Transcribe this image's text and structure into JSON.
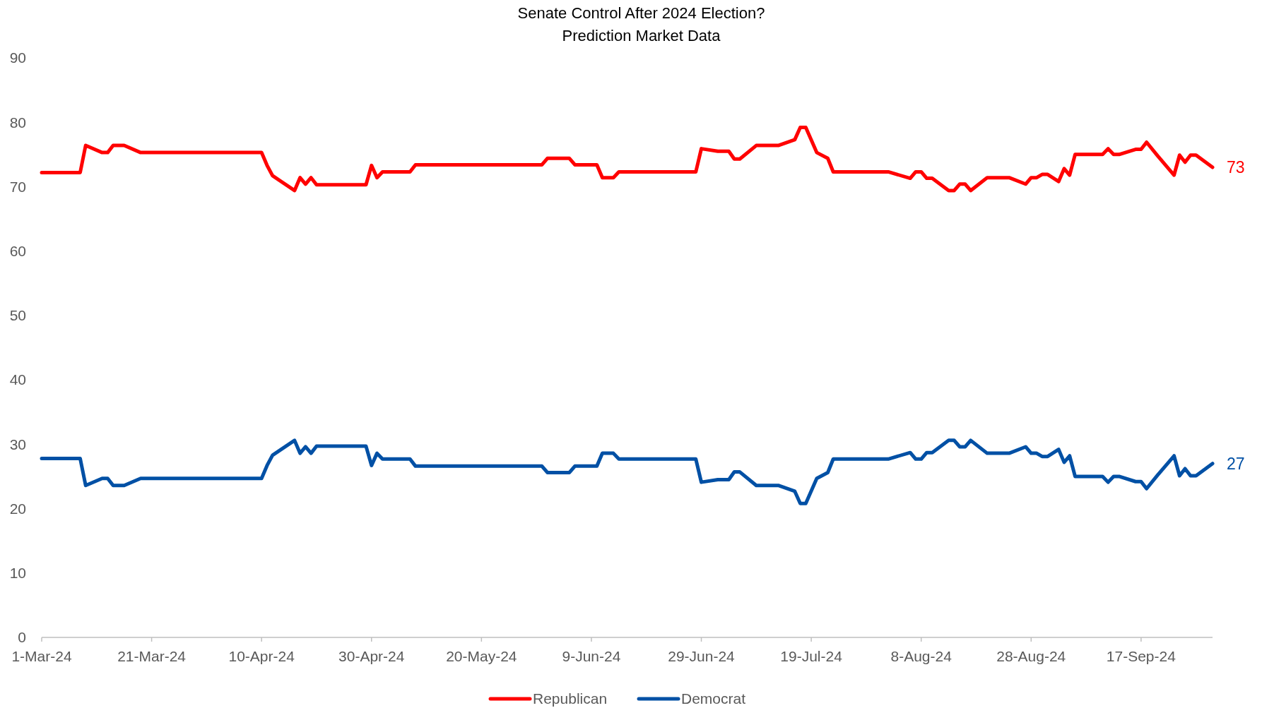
{
  "chart_data": {
    "type": "line",
    "title": "Senate Control After 2024 Election?",
    "subtitle": "Prediction Market Data",
    "x": [
      "2024-03-01",
      "2024-03-08",
      "2024-03-09",
      "2024-03-12",
      "2024-03-13",
      "2024-03-14",
      "2024-03-16",
      "2024-03-19",
      "2024-04-10",
      "2024-04-11",
      "2024-04-12",
      "2024-04-16",
      "2024-04-17",
      "2024-04-18",
      "2024-04-19",
      "2024-04-20",
      "2024-04-29",
      "2024-04-30",
      "2024-05-01",
      "2024-05-02",
      "2024-05-07",
      "2024-05-08",
      "2024-05-31",
      "2024-06-01",
      "2024-06-05",
      "2024-06-06",
      "2024-06-10",
      "2024-06-11",
      "2024-06-13",
      "2024-06-14",
      "2024-06-28",
      "2024-06-29",
      "2024-07-02",
      "2024-07-04",
      "2024-07-05",
      "2024-07-06",
      "2024-07-09",
      "2024-07-13",
      "2024-07-16",
      "2024-07-17",
      "2024-07-18",
      "2024-07-20",
      "2024-07-22",
      "2024-07-23",
      "2024-08-02",
      "2024-08-06",
      "2024-08-07",
      "2024-08-08",
      "2024-08-09",
      "2024-08-10",
      "2024-08-13",
      "2024-08-14",
      "2024-08-15",
      "2024-08-16",
      "2024-08-17",
      "2024-08-20",
      "2024-08-24",
      "2024-08-27",
      "2024-08-28",
      "2024-08-29",
      "2024-08-30",
      "2024-08-31",
      "2024-09-02",
      "2024-09-03",
      "2024-09-04",
      "2024-09-05",
      "2024-09-10",
      "2024-09-11",
      "2024-09-12",
      "2024-09-13",
      "2024-09-16",
      "2024-09-17",
      "2024-09-18",
      "2024-09-20",
      "2024-09-23",
      "2024-09-24",
      "2024-09-25",
      "2024-09-26",
      "2024-09-27",
      "2024-09-30"
    ],
    "series": [
      {
        "name": "Republican",
        "color": "#ff0000",
        "values": [
          72.2,
          72.2,
          76.4,
          75.3,
          75.3,
          76.4,
          76.4,
          75.3,
          75.3,
          73.3,
          71.7,
          69.4,
          71.4,
          70.4,
          71.4,
          70.3,
          70.3,
          73.3,
          71.4,
          72.3,
          72.3,
          73.4,
          73.4,
          74.4,
          74.4,
          73.4,
          73.4,
          71.4,
          71.4,
          72.3,
          72.3,
          75.9,
          75.5,
          75.5,
          74.3,
          74.3,
          76.4,
          76.4,
          77.3,
          79.2,
          79.2,
          75.3,
          74.4,
          72.3,
          72.3,
          71.3,
          72.3,
          72.3,
          71.3,
          71.3,
          69.4,
          69.4,
          70.4,
          70.4,
          69.4,
          71.4,
          71.4,
          70.4,
          71.4,
          71.4,
          71.9,
          71.9,
          70.8,
          72.8,
          71.8,
          75.0,
          75.0,
          75.9,
          75.0,
          75.0,
          75.8,
          75.8,
          76.9,
          74.8,
          71.8,
          74.9,
          73.8,
          74.9,
          74.9,
          73
        ],
        "value_labels": [
          null,
          null,
          null,
          null,
          null,
          null,
          null,
          null,
          null,
          null,
          null,
          null,
          null,
          null,
          null,
          null,
          null,
          null,
          null,
          null,
          null,
          null,
          null,
          null,
          null,
          null,
          null,
          null,
          null,
          null,
          null,
          null,
          null,
          null,
          null,
          null,
          null,
          null,
          null,
          null,
          null,
          null,
          null,
          null,
          null,
          null,
          null,
          null,
          null,
          null,
          null,
          null,
          null,
          null,
          null,
          null,
          null,
          null,
          null,
          null,
          null,
          null,
          null,
          null,
          null,
          null,
          null,
          null,
          null,
          null,
          null,
          null,
          null,
          null,
          null,
          null,
          null,
          null,
          null,
          "73"
        ]
      },
      {
        "name": "Democrat",
        "color": "#0050a5",
        "values": [
          27.8,
          27.8,
          23.6,
          24.7,
          24.7,
          23.6,
          23.6,
          24.7,
          24.7,
          26.7,
          28.3,
          30.6,
          28.6,
          29.6,
          28.6,
          29.7,
          29.7,
          26.7,
          28.6,
          27.7,
          27.7,
          26.6,
          26.6,
          25.6,
          25.6,
          26.6,
          26.6,
          28.6,
          28.6,
          27.7,
          27.7,
          24.1,
          24.5,
          24.5,
          25.7,
          25.7,
          23.6,
          23.6,
          22.7,
          20.8,
          20.8,
          24.7,
          25.6,
          27.7,
          27.7,
          28.7,
          27.7,
          27.7,
          28.7,
          28.7,
          30.6,
          30.6,
          29.6,
          29.6,
          30.6,
          28.6,
          28.6,
          29.6,
          28.6,
          28.6,
          28.1,
          28.1,
          29.2,
          27.2,
          28.2,
          25.0,
          25.0,
          24.1,
          25.0,
          25.0,
          24.2,
          24.2,
          23.1,
          25.2,
          28.2,
          25.1,
          26.2,
          25.1,
          25.1,
          27
        ],
        "value_labels": [
          null,
          null,
          null,
          null,
          null,
          null,
          null,
          null,
          null,
          null,
          null,
          null,
          null,
          null,
          null,
          null,
          null,
          null,
          null,
          null,
          null,
          null,
          null,
          null,
          null,
          null,
          null,
          null,
          null,
          null,
          null,
          null,
          null,
          null,
          null,
          null,
          null,
          null,
          null,
          null,
          null,
          null,
          null,
          null,
          null,
          null,
          null,
          null,
          null,
          null,
          null,
          null,
          null,
          null,
          null,
          null,
          null,
          null,
          null,
          null,
          null,
          null,
          null,
          null,
          null,
          null,
          null,
          null,
          null,
          null,
          null,
          null,
          null,
          null,
          null,
          null,
          null,
          null,
          null,
          "27"
        ]
      }
    ],
    "xlim": [
      "2024-03-01",
      "2024-09-30"
    ],
    "xticks": [
      {
        "value": "2024-03-01",
        "label": "1-Mar-24"
      },
      {
        "value": "2024-03-21",
        "label": "21-Mar-24"
      },
      {
        "value": "2024-04-10",
        "label": "10-Apr-24"
      },
      {
        "value": "2024-04-30",
        "label": "30-Apr-24"
      },
      {
        "value": "2024-05-20",
        "label": "20-May-24"
      },
      {
        "value": "2024-06-09",
        "label": "9-Jun-24"
      },
      {
        "value": "2024-06-29",
        "label": "29-Jun-24"
      },
      {
        "value": "2024-07-19",
        "label": "19-Jul-24"
      },
      {
        "value": "2024-08-08",
        "label": "8-Aug-24"
      },
      {
        "value": "2024-08-28",
        "label": "28-Aug-24"
      },
      {
        "value": "2024-09-17",
        "label": "17-Sep-24"
      }
    ],
    "ylim": [
      0,
      90
    ],
    "yticks": [
      0,
      10,
      20,
      30,
      40,
      50,
      60,
      70,
      80,
      90
    ],
    "grid": false,
    "legend": "bottom",
    "marker": "none",
    "line_style": "solid"
  }
}
